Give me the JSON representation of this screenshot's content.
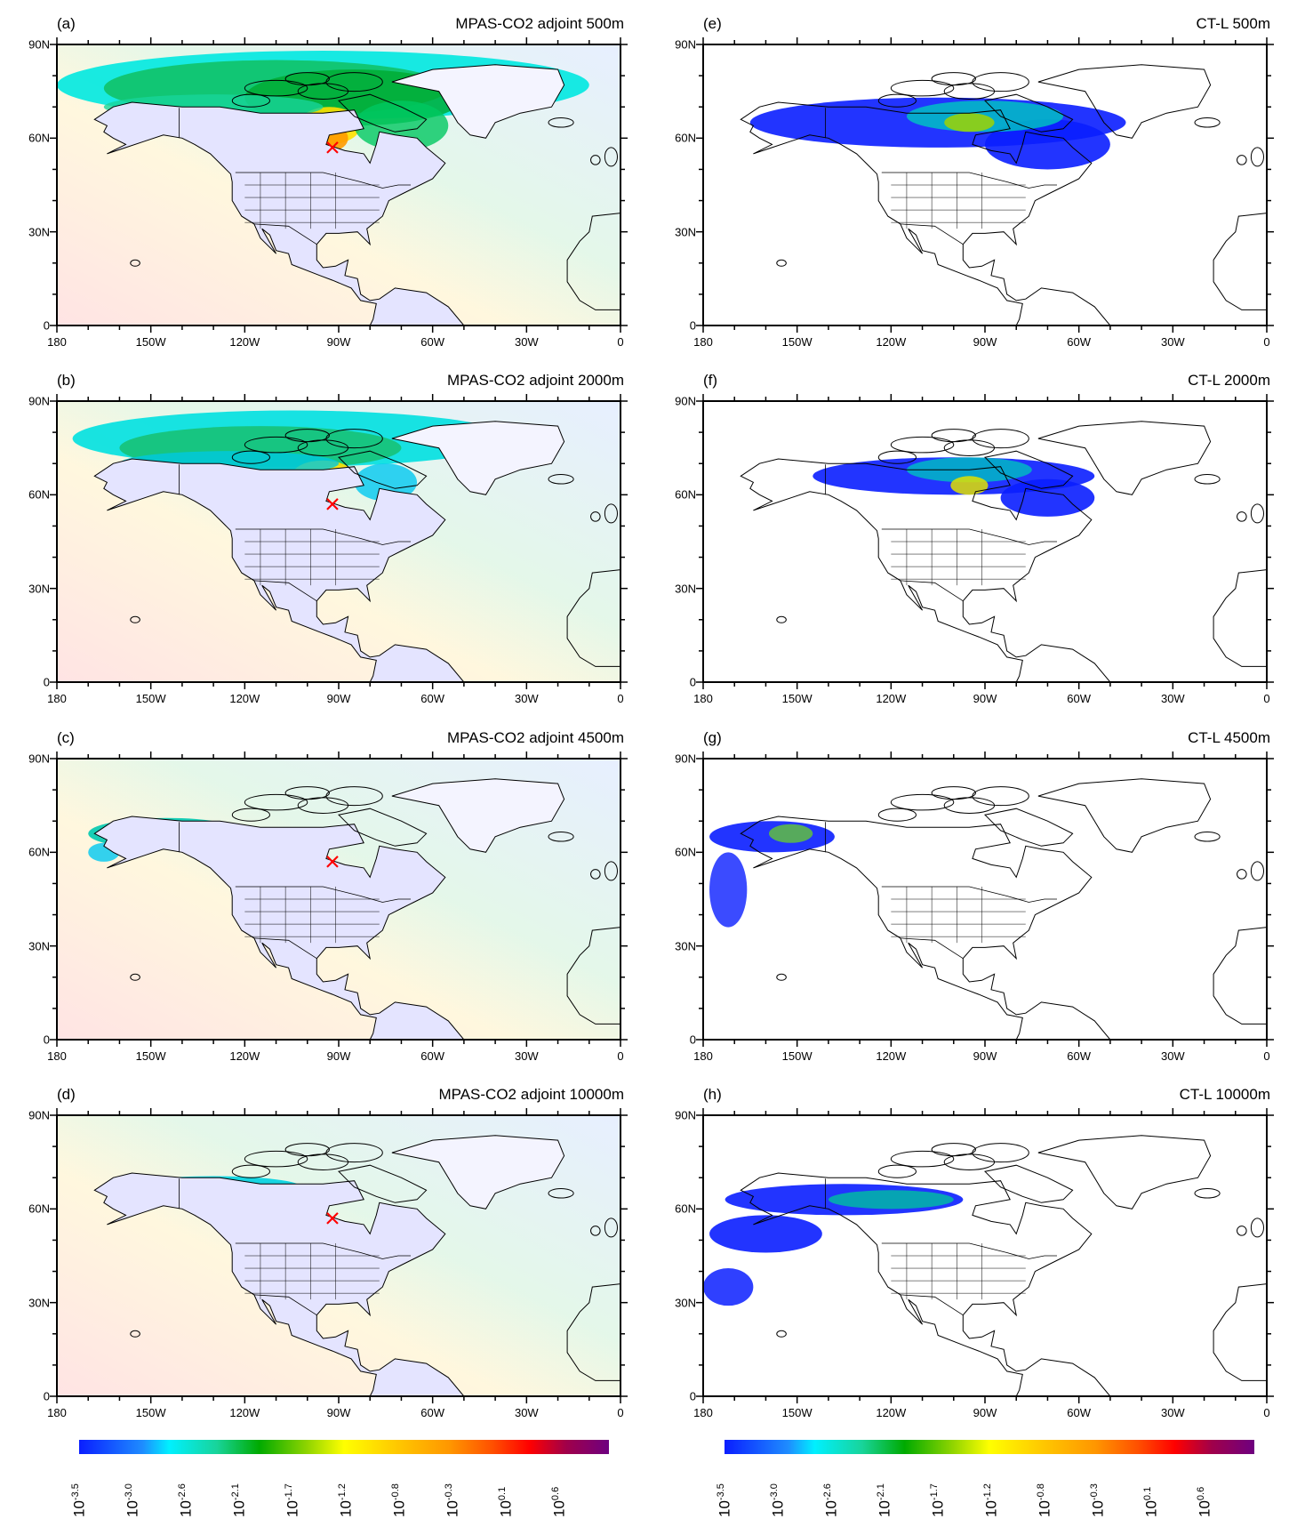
{
  "panels": [
    {
      "label": "(a)",
      "title": "MPAS-CO2 adjoint 500m",
      "model": "mpas"
    },
    {
      "label": "(b)",
      "title": "MPAS-CO2 adjoint 2000m",
      "model": "mpas"
    },
    {
      "label": "(c)",
      "title": "MPAS-CO2 adjoint 4500m",
      "model": "mpas"
    },
    {
      "label": "(d)",
      "title": "MPAS-CO2 adjoint 10000m",
      "model": "mpas"
    },
    {
      "label": "(e)",
      "title": "CT-L 500m",
      "model": "ctl"
    },
    {
      "label": "(f)",
      "title": "CT-L 2000m",
      "model": "ctl"
    },
    {
      "label": "(g)",
      "title": "CT-L 4500m",
      "model": "ctl"
    },
    {
      "label": "(h)",
      "title": "CT-L 10000m",
      "model": "ctl"
    }
  ],
  "chart_data": {
    "type": "heatmap",
    "x_ticks": [
      "180",
      "150W",
      "120W",
      "90W",
      "60W",
      "30W",
      "0"
    ],
    "y_ticks": [
      "0",
      "30N",
      "60N",
      "90N"
    ],
    "xlim": [
      -180,
      0
    ],
    "ylim": [
      0,
      90
    ],
    "receptor": {
      "lon": -92,
      "lat": 57,
      "marker": "x",
      "color": "#ff0000"
    },
    "colorbar": {
      "base": "10",
      "exponents": [
        "-3.5",
        "-3.0",
        "-2.6",
        "-2.1",
        "-1.7",
        "-1.2",
        "-0.8",
        "-0.3",
        "0.1",
        "0.6"
      ],
      "colors": [
        "#0a1eff",
        "#00f0ff",
        "#00aa00",
        "#ffff00",
        "#ff9600",
        "#ff0000",
        "#6e0080"
      ]
    }
  }
}
